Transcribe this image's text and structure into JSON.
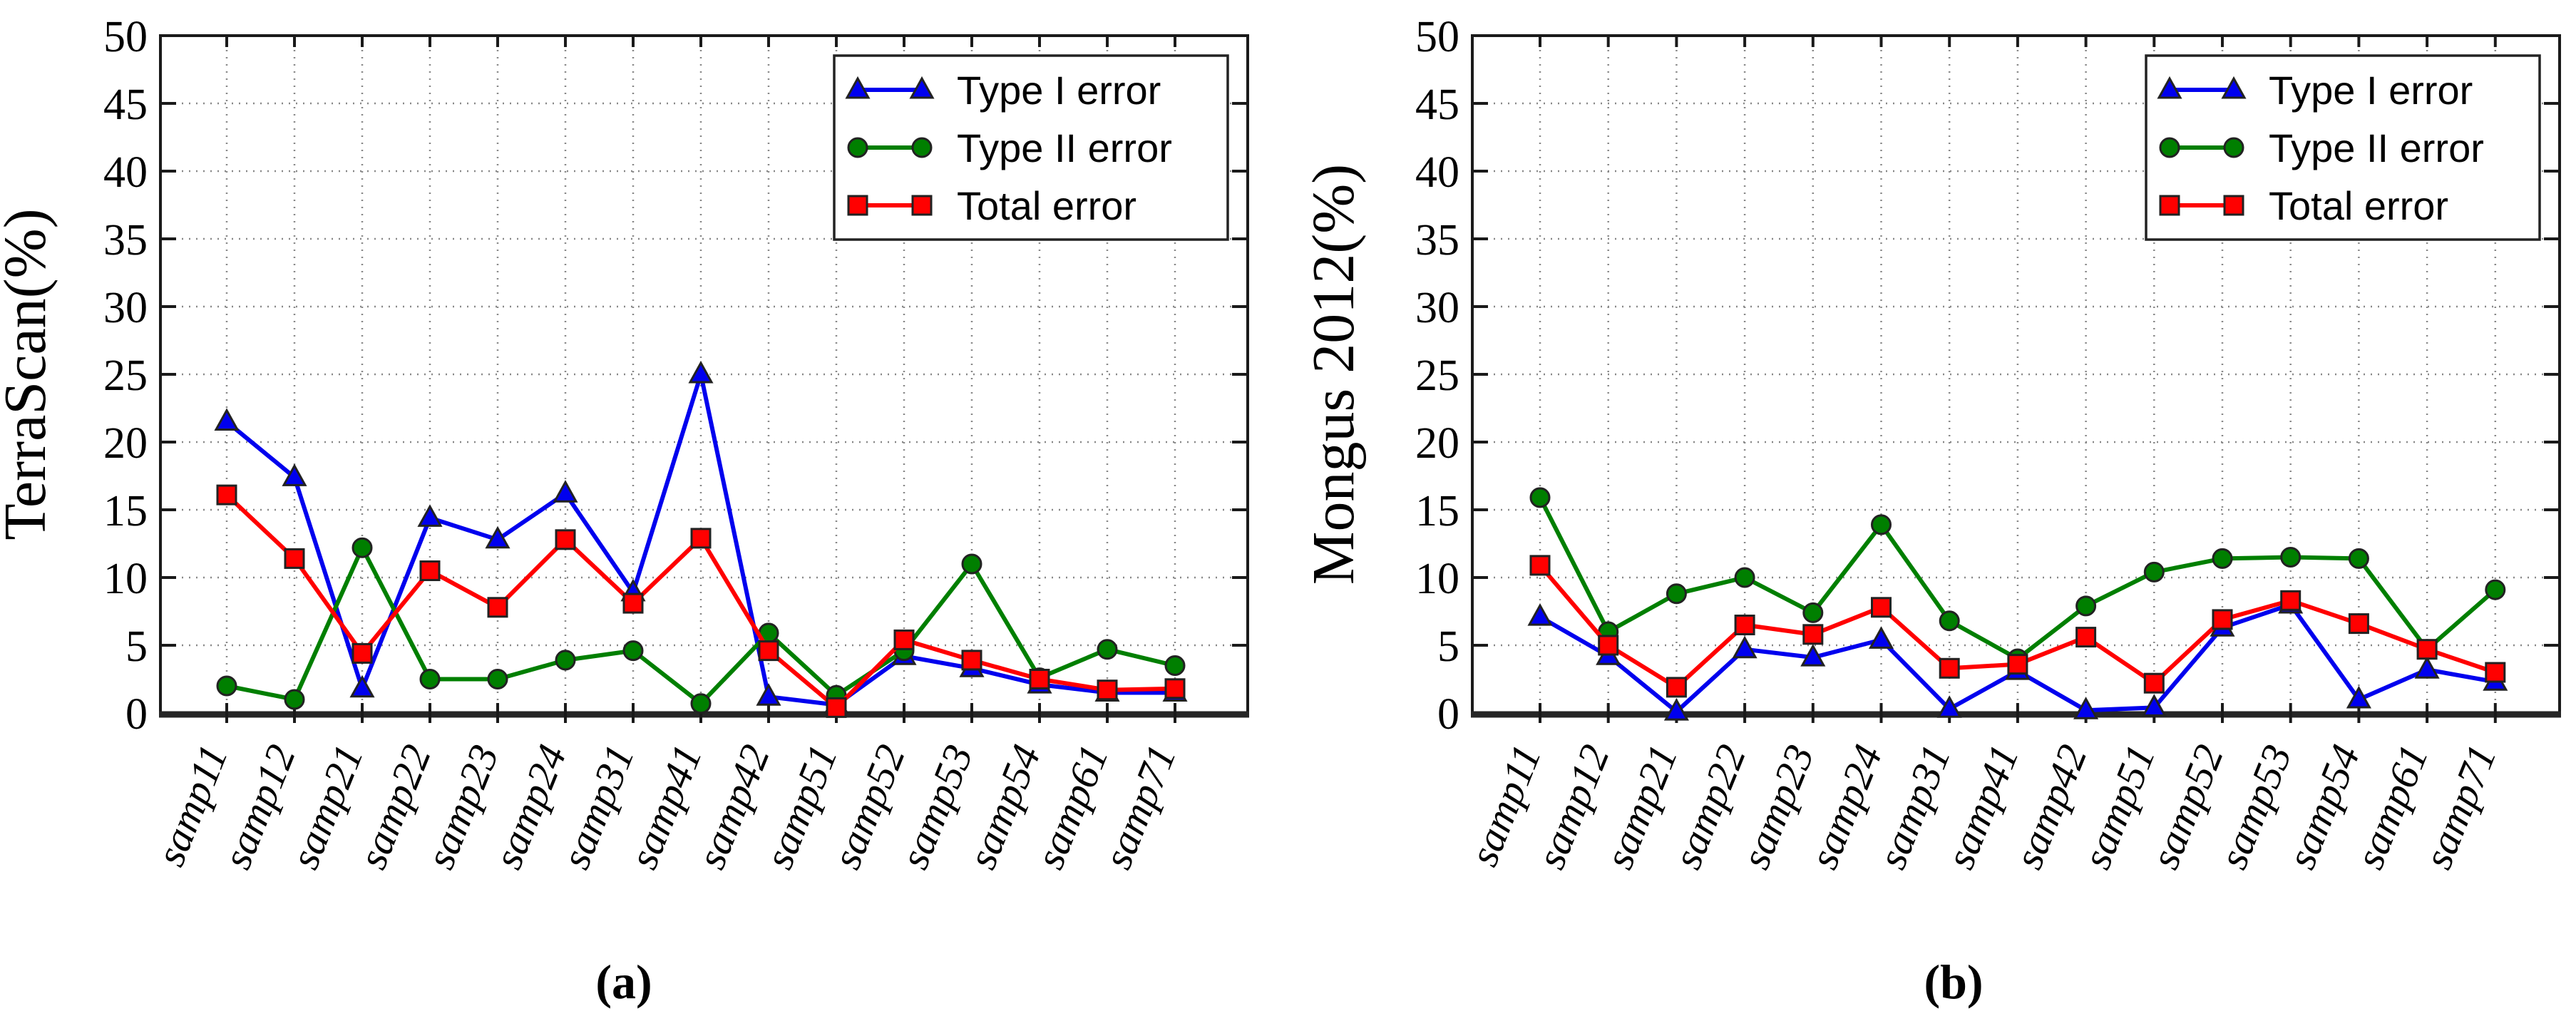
{
  "figure": {
    "background": "#ffffff",
    "axis_color": "#1a1a1a",
    "grid_color": "#888888",
    "legend_border_color": "#222222"
  },
  "chart_data": [
    {
      "type": "line",
      "panel": "a",
      "caption": "(a)",
      "ylabel": "TerraScan(%)",
      "ylim": [
        0,
        50
      ],
      "ytick_step": 5,
      "grid": "dotted",
      "legend_position": "upper right",
      "categories": [
        "samp11",
        "samp12",
        "samp21",
        "samp22",
        "samp23",
        "samp24",
        "samp31",
        "samp41",
        "samp42",
        "samp51",
        "samp52",
        "samp53",
        "samp54",
        "samp61",
        "samp71"
      ],
      "series": [
        {
          "name": "Type I error",
          "marker": "triangle",
          "color": "#0000EE",
          "values": [
            21.5,
            17.4,
            1.8,
            14.4,
            12.8,
            16.2,
            8.9,
            25.0,
            1.2,
            0.6,
            4.2,
            3.3,
            2.1,
            1.5,
            1.5
          ]
        },
        {
          "name": "Type II error",
          "marker": "circle",
          "color": "#007F00",
          "values": [
            2.0,
            1.0,
            12.2,
            2.5,
            2.5,
            3.9,
            4.6,
            0.7,
            5.9,
            1.3,
            4.6,
            11.0,
            2.6,
            4.7,
            3.5
          ]
        },
        {
          "name": "Total error",
          "marker": "square",
          "color": "#FF0000",
          "values": [
            16.1,
            11.4,
            4.4,
            10.5,
            7.8,
            12.8,
            8.1,
            12.9,
            4.6,
            0.4,
            5.4,
            3.9,
            2.5,
            1.7,
            1.8
          ]
        }
      ]
    },
    {
      "type": "line",
      "panel": "b",
      "caption": "(b)",
      "ylabel": "Mongus 2012(%)",
      "ylim": [
        0,
        50
      ],
      "ytick_step": 5,
      "grid": "dotted",
      "legend_position": "upper right",
      "categories": [
        "samp11",
        "samp12",
        "samp21",
        "samp22",
        "samp23",
        "samp24",
        "samp31",
        "samp41",
        "samp42",
        "samp51",
        "samp52",
        "samp53",
        "samp54",
        "samp61",
        "samp71"
      ],
      "series": [
        {
          "name": "Type I error",
          "marker": "triangle",
          "color": "#0000EE",
          "values": [
            7.1,
            4.2,
            0.1,
            4.7,
            4.1,
            5.4,
            0.3,
            3.1,
            0.2,
            0.4,
            6.3,
            8.0,
            1.0,
            3.2,
            2.3
          ]
        },
        {
          "name": "Type II error",
          "marker": "circle",
          "color": "#007F00",
          "values": [
            15.9,
            6.0,
            8.8,
            10.0,
            7.4,
            13.9,
            6.8,
            4.0,
            7.9,
            10.4,
            11.4,
            11.5,
            11.4,
            4.7,
            9.1
          ]
        },
        {
          "name": "Total error",
          "marker": "square",
          "color": "#FF0000",
          "values": [
            10.9,
            5.0,
            1.9,
            6.5,
            5.8,
            7.8,
            3.3,
            3.6,
            5.6,
            2.2,
            6.9,
            8.3,
            6.6,
            4.7,
            3.0
          ]
        }
      ]
    }
  ]
}
